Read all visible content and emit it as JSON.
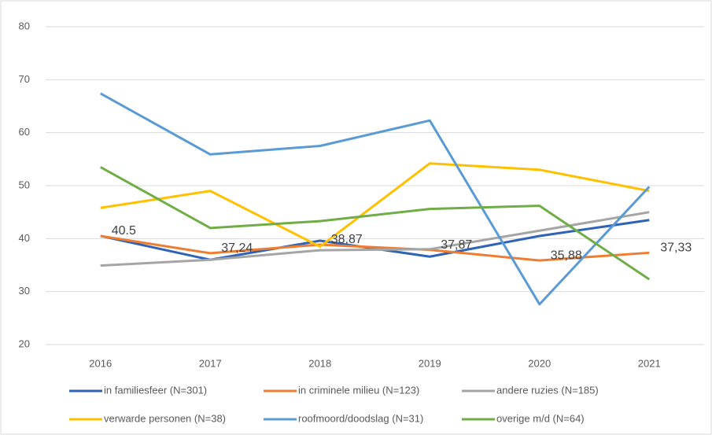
{
  "chart_data": {
    "type": "line",
    "categories": [
      "2016",
      "2017",
      "2018",
      "2019",
      "2020",
      "2021"
    ],
    "ylim": [
      20,
      80
    ],
    "yticks": [
      20,
      30,
      40,
      50,
      60,
      70,
      80
    ],
    "grid": true,
    "legend": "bottom",
    "series": [
      {
        "name": "in familiesfeer (N=301)",
        "color": "#2e63b8",
        "values": [
          40.5,
          36,
          39.6,
          36.6,
          40.5,
          43.5
        ]
      },
      {
        "name": "in criminele milieu (N=123)",
        "color": "#ed7d31",
        "values": [
          40.5,
          37.24,
          38.87,
          37.87,
          35.88,
          37.33
        ],
        "value_labels": [
          "40.5",
          "37,24",
          "38,87",
          "37,87",
          "35,88",
          "37,33"
        ]
      },
      {
        "name": "andere ruzies (N=185)",
        "color": "#a5a5a5",
        "values": [
          34.9,
          36,
          37.8,
          38,
          41.5,
          45
        ]
      },
      {
        "name": "verwarde personen (N=38)",
        "color": "#ffc000",
        "values": [
          45.8,
          49,
          38.5,
          54.2,
          53,
          49
        ]
      },
      {
        "name": "roofmoord/doodslag (N=31)",
        "color": "#5b9bd5",
        "values": [
          67.4,
          55.9,
          57.5,
          62.3,
          27.6,
          49.8
        ]
      },
      {
        "name": "overige m/d (N=64)",
        "color": "#70ad47",
        "values": [
          53.5,
          42,
          43.3,
          45.6,
          46.2,
          32.3
        ]
      }
    ]
  }
}
